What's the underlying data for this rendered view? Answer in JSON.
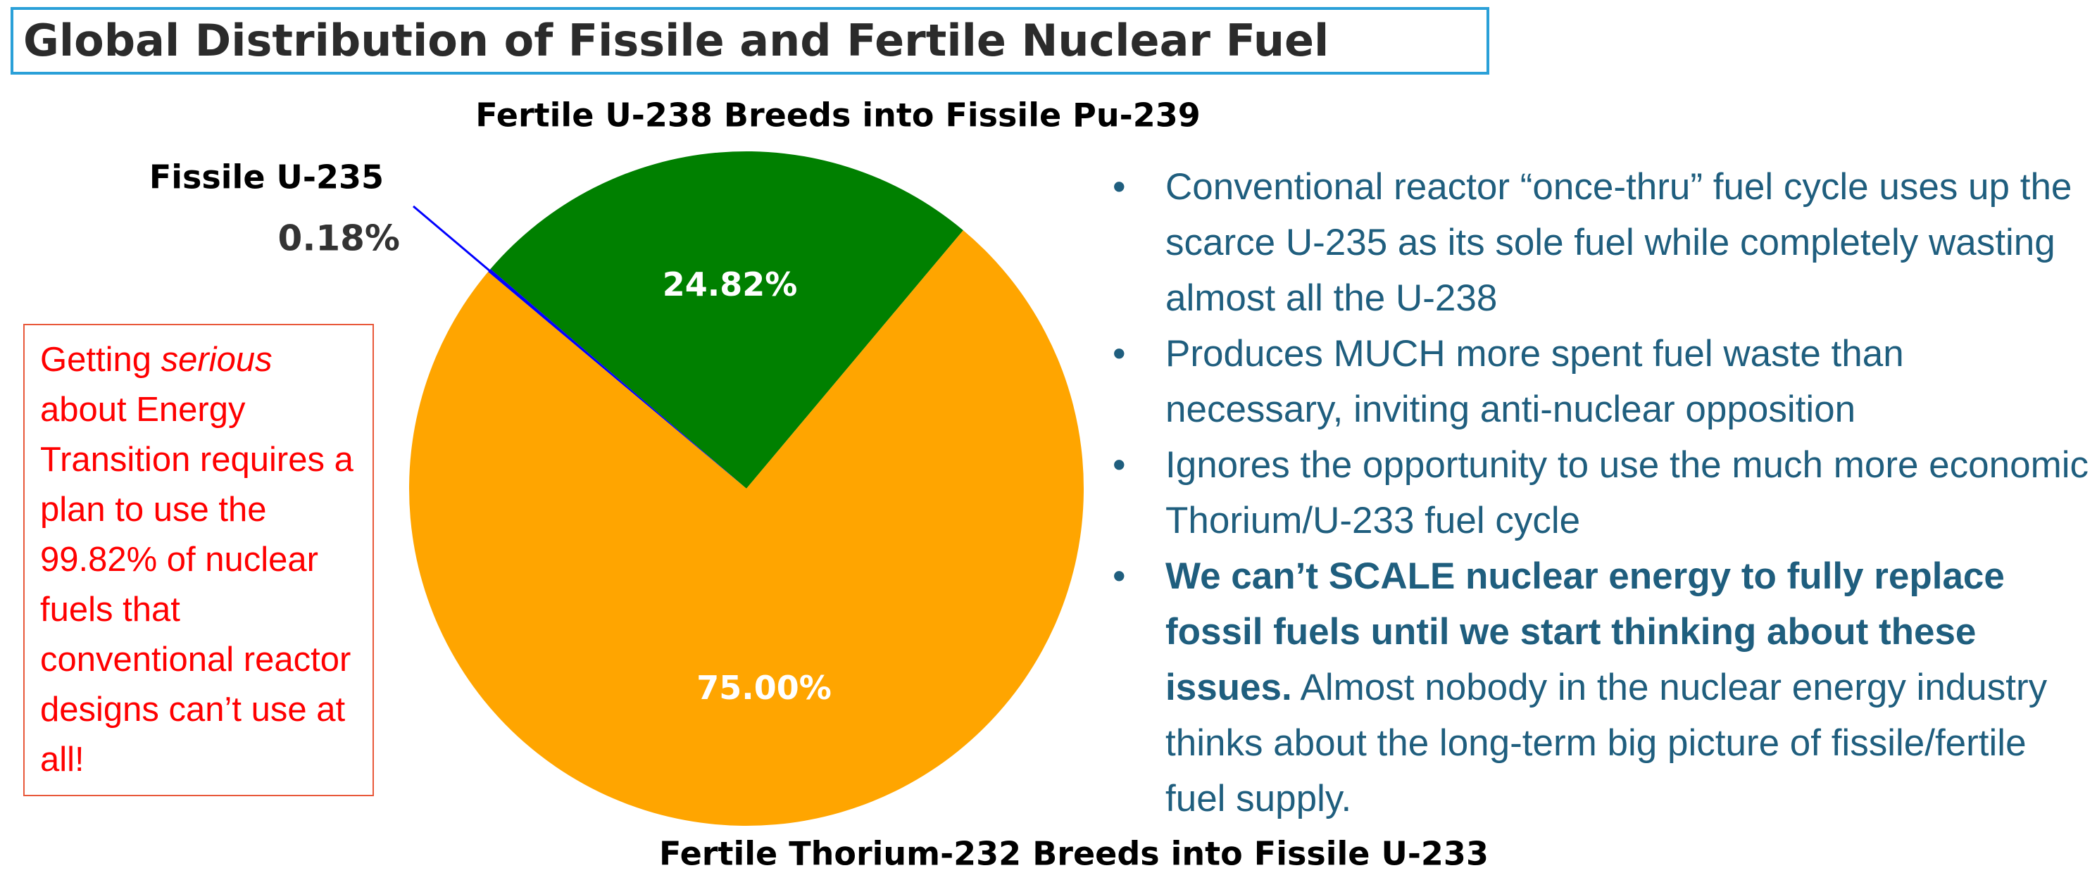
{
  "title": "Global Distribution of Fissile and Fertile Nuclear Fuel",
  "chart_data": {
    "type": "pie",
    "categories": [
      "Fertile U-238 Breeds into Fissile Pu-239",
      "Fissile U-235",
      "Fertile Thorium-232 Breeds into Fissile U-233"
    ],
    "values": [
      24.82,
      0.18,
      75.0
    ],
    "value_labels": [
      "24.82%",
      "0.18%",
      "75.00%"
    ],
    "colors": [
      "#008000",
      "#0000ff",
      "#ffa500"
    ]
  },
  "note": [
    "Getting ",
    "serious",
    " about Energy Transition requires a plan to use the 99.82% of nuclear fuels that conventional reactor designs can’t use at all!"
  ],
  "bullets": [
    {
      "text": "Conventional reactor “once-thru” fuel cycle uses up the scarce U-235 as its sole fuel while completely wasting almost all the U-238"
    },
    {
      "text": "Produces MUCH more spent fuel waste than necessary, inviting anti-nuclear opposition"
    },
    {
      "text": "Ignores the opportunity to use the much more economic Thorium/U-233 fuel cycle"
    },
    {
      "bold": "We can’t SCALE nuclear energy to fully replace fossil fuels until we start thinking about these issues.",
      "text": " Almost nobody in the nuclear energy industry thinks about the long-term big picture of fissile/fertile fuel supply."
    }
  ]
}
